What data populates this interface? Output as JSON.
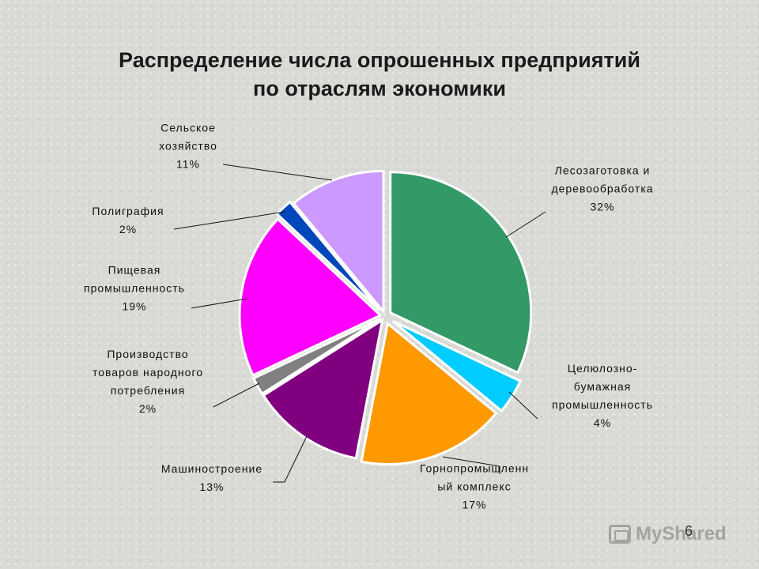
{
  "chart_data": {
    "type": "pie",
    "title": [
      "Распределение числа опрошенных предприятий",
      "по отраслям экономики"
    ],
    "slices": [
      {
        "label": [
          "Лесозаготовка и",
          "деревообработка"
        ],
        "percent_label": "32%",
        "value": 32,
        "color": "#339966"
      },
      {
        "label": [
          "Целюлозно-",
          "бумажная",
          "промышленность"
        ],
        "percent_label": "4%",
        "value": 4,
        "color": "#00ccff"
      },
      {
        "label": [
          "Горнопромышленн",
          "ый комплекс"
        ],
        "percent_label": "17%",
        "value": 17,
        "color": "#ff9900"
      },
      {
        "label": [
          "Машиностроение"
        ],
        "percent_label": "13%",
        "value": 13,
        "color": "#800080"
      },
      {
        "label": [
          "Производство",
          "товаров народного",
          "потребления"
        ],
        "percent_label": "2%",
        "value": 2,
        "color": "#808080"
      },
      {
        "label": [
          "Пищевая",
          "промышленность"
        ],
        "percent_label": "19%",
        "value": 19,
        "color": "#ff00ff"
      },
      {
        "label": [
          "Полиграфия"
        ],
        "percent_label": "2%",
        "value": 2,
        "color": "#0047bb"
      },
      {
        "label": [
          "Сельское",
          "хозяйство"
        ],
        "percent_label": "11%",
        "value": 11,
        "color": "#cc99ff"
      }
    ]
  },
  "page_number": "6",
  "watermark": "MyShared"
}
